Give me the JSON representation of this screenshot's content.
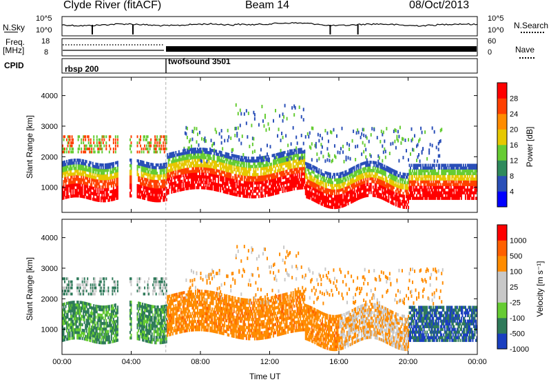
{
  "header": {
    "title": "Clyde River (fitACF)",
    "beam": "Beam 14",
    "date": "08/Oct/2013"
  },
  "top_panels": {
    "noise_left_label": "N.Sky",
    "noise_left_ticks": [
      "10^5",
      "10^0"
    ],
    "noise_right_ticks": [
      "10^5",
      "10^0"
    ],
    "noise_right_label": "N.Search",
    "freq_label_line1": "Freq.",
    "freq_label_line2": "[MHz]",
    "freq_ticks": [
      "18",
      "8"
    ],
    "nave_ticks": [
      "60",
      "0"
    ],
    "nave_label": "Nave",
    "cpid_label": "CPID",
    "cpid_entries": [
      {
        "name": "rbsp 200",
        "start_hour": 0
      },
      {
        "name": "twofsound 3501",
        "start_hour": 6
      }
    ]
  },
  "chart_data": [
    {
      "type": "heatmap",
      "ylabel": "Slant Range [km]",
      "yticks": [
        1000,
        2000,
        3000,
        4000
      ],
      "ylim": [
        180,
        4600
      ],
      "xlim": [
        0,
        24
      ],
      "colorbar": {
        "label": "Power [dB]",
        "ticks": [
          "4",
          "8",
          "12",
          "16",
          "20",
          "24",
          "28"
        ],
        "range": [
          0,
          32
        ],
        "colors": [
          "#0000ff",
          "#2a4fb8",
          "#2e8a5c",
          "#66cc33",
          "#e6c800",
          "#ff8c00",
          "#ff4000",
          "#ff0000"
        ]
      }
    },
    {
      "type": "heatmap",
      "ylabel": "Slant Range [km]",
      "yticks": [
        1000,
        2000,
        3000,
        4000
      ],
      "ylim": [
        180,
        4600
      ],
      "xlim": [
        0,
        24
      ],
      "xticks": [
        "00:00",
        "04:00",
        "08:00",
        "12:00",
        "16:00",
        "20:00",
        "00:00"
      ],
      "xlabel": "Time UT",
      "colorbar": {
        "label": "Velocity [m s⁻¹]",
        "ticks": [
          "1000",
          "500",
          "100",
          "25",
          "-25",
          "-100",
          "-500",
          "-1000"
        ],
        "colors": [
          "#1a3fc0",
          "#2f7a5a",
          "#66cc33",
          "#c8c8c8",
          "#c8c8c8",
          "#ff8c00",
          "#ff6000",
          "#ff0000"
        ]
      }
    }
  ],
  "colors": {
    "axis": "#000000",
    "gap_line": "#b0b0b0"
  }
}
